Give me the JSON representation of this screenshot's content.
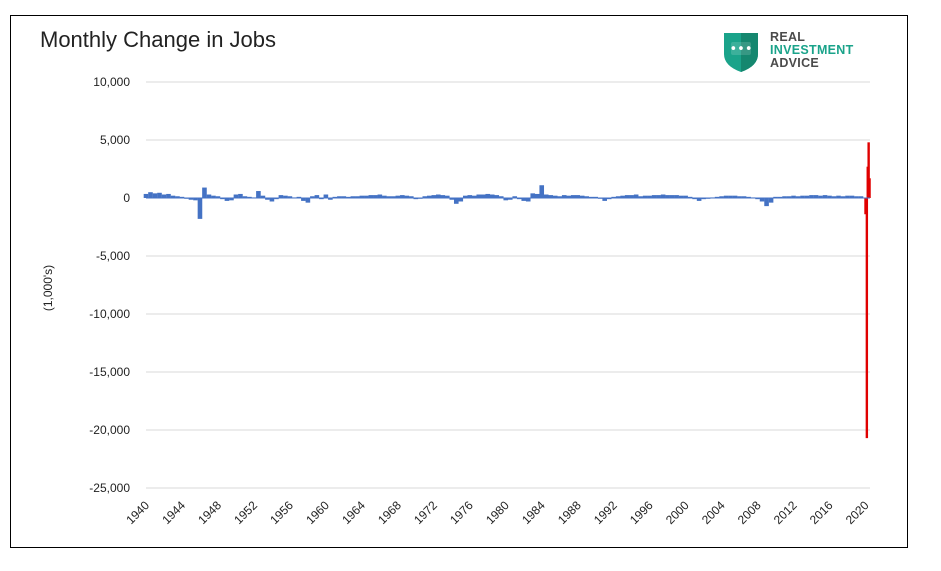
{
  "chart_data": {
    "type": "bar",
    "title": "Monthly Change in Jobs",
    "ylabel": "(1,000's)",
    "xlabel": "",
    "ylim": [
      -25000,
      10000
    ],
    "xlim": [
      1940,
      2020.5
    ],
    "grid": true,
    "y_ticks": [
      "10,000",
      "5,000",
      "0",
      "-5,000",
      "-10,000",
      "-15,000",
      "-20,000",
      "-25,000"
    ],
    "y_tick_values": [
      10000,
      5000,
      0,
      -5000,
      -10000,
      -15000,
      -20000,
      -25000
    ],
    "x_ticks": [
      "1940",
      "1944",
      "1948",
      "1952",
      "1956",
      "1960",
      "1964",
      "1968",
      "1972",
      "1976",
      "1980",
      "1984",
      "1988",
      "1992",
      "1996",
      "2000",
      "2004",
      "2008",
      "2012",
      "2016",
      "2020"
    ],
    "x_tick_values": [
      1940,
      1944,
      1948,
      1952,
      1956,
      1960,
      1964,
      1968,
      1972,
      1976,
      1980,
      1984,
      1988,
      1992,
      1996,
      2000,
      2004,
      2008,
      2012,
      2016,
      2020
    ],
    "series": [
      {
        "color": "#4472c4",
        "x": [
          1940.0,
          1940.5,
          1941.0,
          1941.5,
          1942.0,
          1942.5,
          1943.0,
          1943.5,
          1944.0,
          1944.5,
          1945.0,
          1945.5,
          1946.0,
          1946.5,
          1947.0,
          1947.5,
          1948.0,
          1948.5,
          1949.0,
          1949.5,
          1950.0,
          1950.5,
          1951.0,
          1951.5,
          1952.0,
          1952.5,
          1953.0,
          1953.5,
          1954.0,
          1954.5,
          1955.0,
          1955.5,
          1956.0,
          1956.5,
          1957.0,
          1957.5,
          1958.0,
          1958.5,
          1959.0,
          1959.5,
          1960.0,
          1960.5,
          1961.0,
          1961.5,
          1962.0,
          1962.5,
          1963.0,
          1963.5,
          1964.0,
          1964.5,
          1965.0,
          1965.5,
          1966.0,
          1966.5,
          1967.0,
          1967.5,
          1968.0,
          1968.5,
          1969.0,
          1969.5,
          1970.0,
          1970.5,
          1971.0,
          1971.5,
          1972.0,
          1972.5,
          1973.0,
          1973.5,
          1974.0,
          1974.5,
          1975.0,
          1975.5,
          1976.0,
          1976.5,
          1977.0,
          1977.5,
          1978.0,
          1978.5,
          1979.0,
          1979.5,
          1980.0,
          1980.5,
          1981.0,
          1981.5,
          1982.0,
          1982.5,
          1983.0,
          1983.5,
          1984.0,
          1984.5,
          1985.0,
          1985.5,
          1986.0,
          1986.5,
          1987.0,
          1987.5,
          1988.0,
          1988.5,
          1989.0,
          1989.5,
          1990.0,
          1990.5,
          1991.0,
          1991.5,
          1992.0,
          1992.5,
          1993.0,
          1993.5,
          1994.0,
          1994.5,
          1995.0,
          1995.5,
          1996.0,
          1996.5,
          1997.0,
          1997.5,
          1998.0,
          1998.5,
          1999.0,
          1999.5,
          2000.0,
          2000.5,
          2001.0,
          2001.5,
          2002.0,
          2002.5,
          2003.0,
          2003.5,
          2004.0,
          2004.5,
          2005.0,
          2005.5,
          2006.0,
          2006.5,
          2007.0,
          2007.5,
          2008.0,
          2008.5,
          2009.0,
          2009.5,
          2010.0,
          2010.5,
          2011.0,
          2011.5,
          2012.0,
          2012.5,
          2013.0,
          2013.5,
          2014.0,
          2014.5,
          2015.0,
          2015.5,
          2016.0,
          2016.5,
          2017.0,
          2017.5,
          2018.0,
          2018.5,
          2019.0,
          2019.5
        ],
        "values": [
          350,
          500,
          400,
          450,
          300,
          350,
          200,
          150,
          100,
          -50,
          -150,
          -200,
          -1800,
          900,
          300,
          200,
          150,
          -100,
          -250,
          -200,
          300,
          350,
          150,
          100,
          50,
          600,
          200,
          -150,
          -300,
          -100,
          250,
          200,
          150,
          50,
          100,
          -250,
          -400,
          150,
          250,
          -100,
          300,
          -150,
          100,
          150,
          150,
          100,
          150,
          150,
          200,
          200,
          250,
          250,
          300,
          200,
          150,
          150,
          200,
          250,
          200,
          150,
          -100,
          -50,
          150,
          200,
          250,
          300,
          250,
          200,
          -150,
          -500,
          -300,
          200,
          250,
          200,
          300,
          300,
          350,
          300,
          250,
          150,
          -200,
          -150,
          150,
          -100,
          -250,
          -300,
          400,
          350,
          1100,
          300,
          250,
          200,
          150,
          250,
          200,
          250,
          250,
          200,
          150,
          100,
          100,
          -50,
          -250,
          -100,
          100,
          150,
          200,
          250,
          250,
          300,
          150,
          200,
          200,
          250,
          250,
          300,
          250,
          250,
          250,
          200,
          200,
          100,
          -100,
          -250,
          -100,
          0,
          50,
          100,
          150,
          200,
          200,
          200,
          150,
          150,
          100,
          50,
          -100,
          -300,
          -700,
          -400,
          100,
          100,
          150,
          150,
          200,
          150,
          200,
          200,
          250,
          250,
          200,
          250,
          200,
          150,
          200,
          150,
          200,
          200,
          150,
          150
        ]
      },
      {
        "color": "#e00000",
        "x": [
          2020.0,
          2020.15,
          2020.25,
          2020.35,
          2020.45
        ],
        "values": [
          -1400,
          -20700,
          2700,
          4800,
          1700
        ]
      }
    ]
  },
  "logo": {
    "line1": "REAL",
    "line2": "INVESTMENT",
    "line3": "ADVICE",
    "shield_color": "#1aa38a",
    "dots": "•••"
  }
}
